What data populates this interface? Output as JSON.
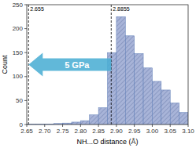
{
  "chart_data": {
    "type": "histogram",
    "xlabel": "NH...O distance (Å)",
    "ylabel": "Count",
    "bins": [
      2.65,
      2.675,
      2.7,
      2.725,
      2.75,
      2.775,
      2.8,
      2.825,
      2.85,
      2.875,
      2.9,
      2.925,
      2.95,
      2.975,
      3.0,
      3.025,
      3.05,
      3.075,
      3.1
    ],
    "values": [
      1,
      1,
      1,
      2,
      3,
      5,
      8,
      20,
      35,
      150,
      225,
      185,
      148,
      118,
      90,
      72,
      45,
      25
    ],
    "color": "#a8b4d8",
    "xlim": [
      2.65,
      3.1
    ],
    "ylim": [
      0,
      250
    ],
    "xticks": [
      2.65,
      {
        "value": 2.7,
        "label": "2.70"
      },
      2.75,
      {
        "value": 2.8,
        "label": "2.80"
      },
      2.85,
      {
        "value": 2.9,
        "label": "2.90"
      },
      2.95,
      {
        "value": 3.0,
        "label": "3.00"
      },
      3.05,
      {
        "value": 3.1,
        "label": "3.10"
      }
    ],
    "yticks": [
      0,
      50,
      100,
      150,
      200,
      250
    ],
    "grid": false,
    "annotations": [
      {
        "type": "vline",
        "x": 2.655,
        "label": "2.655"
      },
      {
        "type": "vline",
        "x": 2.8855,
        "label": "2.8855"
      },
      {
        "type": "arrow",
        "x_start": 2.8855,
        "x_end": 2.655,
        "y": 125,
        "text": "5 GPa",
        "color": "#4baed4"
      }
    ]
  }
}
